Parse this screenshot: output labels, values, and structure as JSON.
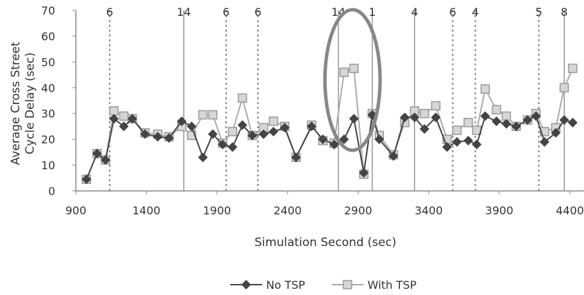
{
  "chart_data": {
    "type": "line",
    "title": "",
    "xlabel": "Simulation Second (sec)",
    "ylabel": [
      "Average Cross Street",
      "Cycle Delay (sec)"
    ],
    "xlim": [
      900,
      4500
    ],
    "ylim": [
      0,
      70
    ],
    "xticks": [
      900,
      1400,
      1900,
      2400,
      2900,
      3400,
      3900,
      4400
    ],
    "yticks": [
      0,
      10,
      20,
      30,
      40,
      50,
      60,
      70
    ],
    "grid": false,
    "legend_position": "bottom",
    "series": [
      {
        "name": "No TSP",
        "color": "#444444",
        "marker": "diamond",
        "x": [
          975,
          1050,
          1110,
          1170,
          1240,
          1300,
          1390,
          1480,
          1560,
          1650,
          1720,
          1800,
          1870,
          1940,
          2010,
          2080,
          2150,
          2230,
          2300,
          2380,
          2460,
          2570,
          2650,
          2730,
          2800,
          2870,
          2940,
          3000,
          3050,
          3150,
          3230,
          3300,
          3370,
          3450,
          3530,
          3600,
          3680,
          3740,
          3800,
          3880,
          3950,
          4020,
          4100,
          4160,
          4220,
          4300,
          4360,
          4420
        ],
        "y": [
          4.5,
          14.5,
          12,
          28,
          25,
          28,
          22,
          21,
          20.5,
          27,
          25,
          13,
          22,
          18,
          17,
          25.5,
          21.5,
          22,
          23,
          24.5,
          13,
          25,
          20,
          18,
          20,
          28,
          7,
          29.5,
          20,
          13.5,
          28.5,
          28.5,
          24,
          28.5,
          17,
          19,
          19.5,
          18,
          29,
          27,
          26,
          25,
          27.5,
          29,
          19,
          22.5,
          27.5,
          26.5
        ]
      },
      {
        "name": "With TSP",
        "color": "#aaaaaa",
        "marker": "square",
        "x": [
          975,
          1050,
          1110,
          1170,
          1240,
          1300,
          1390,
          1480,
          1560,
          1650,
          1720,
          1800,
          1870,
          1940,
          2010,
          2080,
          2150,
          2230,
          2300,
          2380,
          2460,
          2570,
          2650,
          2730,
          2800,
          2870,
          2940,
          3000,
          3050,
          3150,
          3230,
          3300,
          3370,
          3450,
          3530,
          3600,
          3680,
          3740,
          3800,
          3880,
          3950,
          4020,
          4100,
          4160,
          4220,
          4300,
          4360,
          4420
        ],
        "y": [
          4.5,
          14.5,
          12,
          31,
          29,
          28,
          22.5,
          22,
          21,
          25,
          21.5,
          29.5,
          29.5,
          18.5,
          23,
          36,
          21.5,
          24.5,
          27,
          25,
          13,
          25.5,
          19.5,
          18.5,
          46,
          47.5,
          6.5,
          30,
          21.5,
          14,
          26.5,
          31,
          30,
          33,
          20,
          23.5,
          26.5,
          23.5,
          39.5,
          31.5,
          29,
          25,
          27.5,
          30,
          23,
          24.5,
          40,
          47.5
        ]
      }
    ],
    "event_lines": [
      {
        "x": 1140,
        "label": "6",
        "style": "dotted"
      },
      {
        "x": 1665,
        "label": "14",
        "style": "solid"
      },
      {
        "x": 1965,
        "label": "6",
        "style": "dotted"
      },
      {
        "x": 2190,
        "label": "6",
        "style": "dotted"
      },
      {
        "x": 2760,
        "label": "14",
        "style": "solid"
      },
      {
        "x": 3000,
        "label": "1",
        "style": "solid"
      },
      {
        "x": 3300,
        "label": "4",
        "style": "solid"
      },
      {
        "x": 3570,
        "label": "6",
        "style": "dotted"
      },
      {
        "x": 3730,
        "label": "4",
        "style": "dotted"
      },
      {
        "x": 4180,
        "label": "5",
        "style": "dotted"
      },
      {
        "x": 4360,
        "label": "8",
        "style": "solid"
      }
    ],
    "highlight": {
      "shape": "ellipse",
      "x": 2860,
      "y": 43
    }
  }
}
